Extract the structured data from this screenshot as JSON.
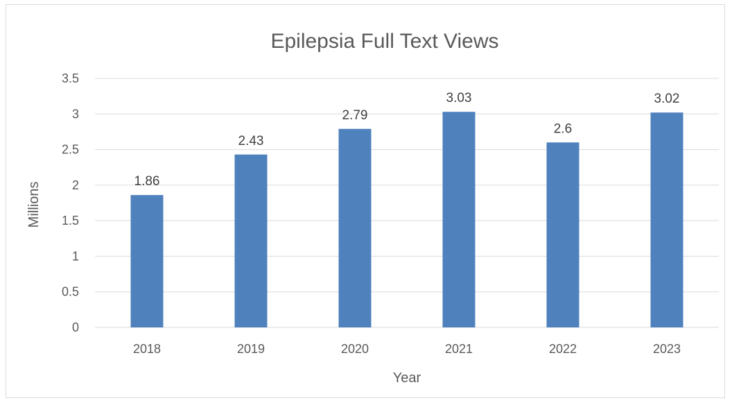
{
  "chart_data": {
    "type": "bar",
    "title": "Epilepsia Full Text Views",
    "xlabel": "Year",
    "ylabel": "Millions",
    "categories": [
      "2018",
      "2019",
      "2020",
      "2021",
      "2022",
      "2023"
    ],
    "values": [
      1.86,
      2.43,
      2.79,
      3.03,
      2.6,
      3.02
    ],
    "data_labels": [
      "1.86",
      "2.43",
      "2.79",
      "3.03",
      "2.6",
      "3.02"
    ],
    "ylim": [
      0,
      3.5
    ],
    "y_ticks": [
      "0",
      "0.5",
      "1",
      "1.5",
      "2",
      "2.5",
      "3",
      "3.5"
    ],
    "grid": true,
    "legend": "none",
    "bar_color": "#4f81bd",
    "grid_color": "#d9d9d9"
  }
}
